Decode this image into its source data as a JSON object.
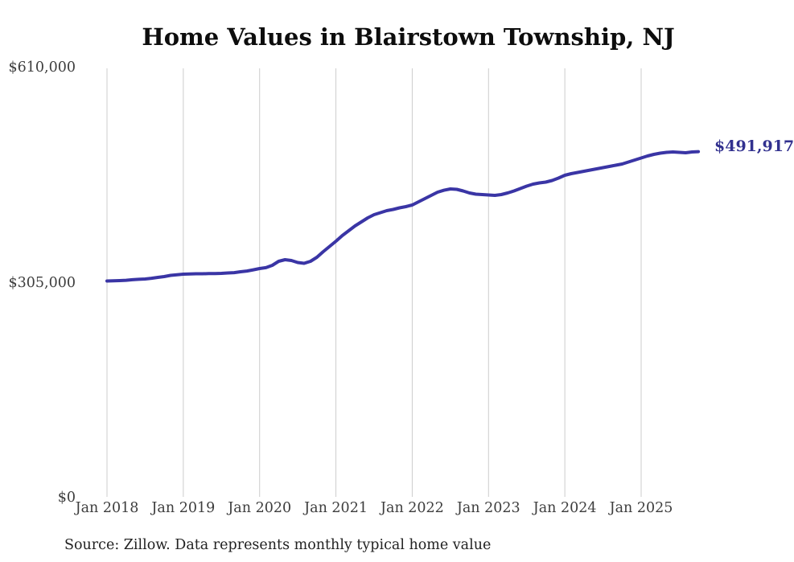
{
  "title": "Home Values in Blairstown Township, NJ",
  "end_label": "$491,917",
  "source_note": "Source: Zillow. Data represents monthly typical home value",
  "colors": {
    "line": "#3a35a5",
    "end_label": "#32318f",
    "grid": "#cccccc",
    "axis_text": "#3d3d3d",
    "title_text": "#0d0d0d",
    "background": "#ffffff"
  },
  "y_axis": {
    "ticks": [
      {
        "label": "$610,000",
        "value": 610000
      },
      {
        "label": "$305,000",
        "value": 305000
      },
      {
        "label": "$0",
        "value": 0
      }
    ]
  },
  "x_axis": {
    "ticks": [
      {
        "label": "Jan 2018",
        "month_index": 0
      },
      {
        "label": "Jan 2019",
        "month_index": 12
      },
      {
        "label": "Jan 2020",
        "month_index": 24
      },
      {
        "label": "Jan 2021",
        "month_index": 36
      },
      {
        "label": "Jan 2022",
        "month_index": 48
      },
      {
        "label": "Jan 2023",
        "month_index": 60
      },
      {
        "label": "Jan 2024",
        "month_index": 72
      },
      {
        "label": "Jan 2025",
        "month_index": 84
      }
    ]
  },
  "chart_data": {
    "type": "line",
    "title": "Home Values in Blairstown Township, NJ",
    "series_name": "Monthly typical home value (Zillow)",
    "frequency": "monthly",
    "ylim": [
      0,
      610000
    ],
    "grid": "vertical-only",
    "legend": "none",
    "end_point_label": "$491,917",
    "end_value": 491917,
    "months": [
      "2018-01",
      "2018-02",
      "2018-03",
      "2018-04",
      "2018-05",
      "2018-06",
      "2018-07",
      "2018-08",
      "2018-09",
      "2018-10",
      "2018-11",
      "2018-12",
      "2019-01",
      "2019-02",
      "2019-03",
      "2019-04",
      "2019-05",
      "2019-06",
      "2019-07",
      "2019-08",
      "2019-09",
      "2019-10",
      "2019-11",
      "2019-12",
      "2020-01",
      "2020-02",
      "2020-03",
      "2020-04",
      "2020-05",
      "2020-06",
      "2020-07",
      "2020-08",
      "2020-09",
      "2020-10",
      "2020-11",
      "2020-12",
      "2021-01",
      "2021-02",
      "2021-03",
      "2021-04",
      "2021-05",
      "2021-06",
      "2021-07",
      "2021-08",
      "2021-09",
      "2021-10",
      "2021-11",
      "2021-12",
      "2022-01",
      "2022-02",
      "2022-03",
      "2022-04",
      "2022-05",
      "2022-06",
      "2022-07",
      "2022-08",
      "2022-09",
      "2022-10",
      "2022-11",
      "2022-12",
      "2023-01",
      "2023-02",
      "2023-03",
      "2023-04",
      "2023-05",
      "2023-06",
      "2023-07",
      "2023-08",
      "2023-09",
      "2023-10",
      "2023-11",
      "2023-12",
      "2024-01",
      "2024-02",
      "2024-03",
      "2024-04",
      "2024-05",
      "2024-06",
      "2024-07",
      "2024-08",
      "2024-09",
      "2024-10",
      "2024-11",
      "2024-12",
      "2025-01",
      "2025-02",
      "2025-03",
      "2025-04",
      "2025-05",
      "2025-06",
      "2025-07",
      "2025-08",
      "2025-09",
      "2025-10"
    ],
    "values": [
      308400,
      308600,
      309000,
      309500,
      310200,
      310800,
      311300,
      312300,
      313500,
      314700,
      316400,
      317300,
      318100,
      318500,
      318700,
      318700,
      318900,
      319000,
      319200,
      319800,
      320300,
      321500,
      322600,
      324300,
      326100,
      327300,
      330600,
      336300,
      338600,
      337500,
      334600,
      333500,
      336300,
      342100,
      350000,
      357400,
      364900,
      372800,
      379700,
      386500,
      392200,
      397900,
      402500,
      405300,
      408200,
      409900,
      412200,
      413900,
      416200,
      420700,
      425300,
      429800,
      434400,
      437200,
      439000,
      438400,
      436100,
      433300,
      431600,
      431000,
      430400,
      429800,
      431000,
      433300,
      436100,
      439500,
      443000,
      445800,
      447500,
      448700,
      450900,
      454400,
      458400,
      460600,
      462400,
      464100,
      465800,
      467500,
      469200,
      470900,
      472600,
      474300,
      477200,
      480000,
      482900,
      485700,
      488000,
      489700,
      490900,
      491400,
      490900,
      490300,
      491400,
      491917
    ]
  }
}
